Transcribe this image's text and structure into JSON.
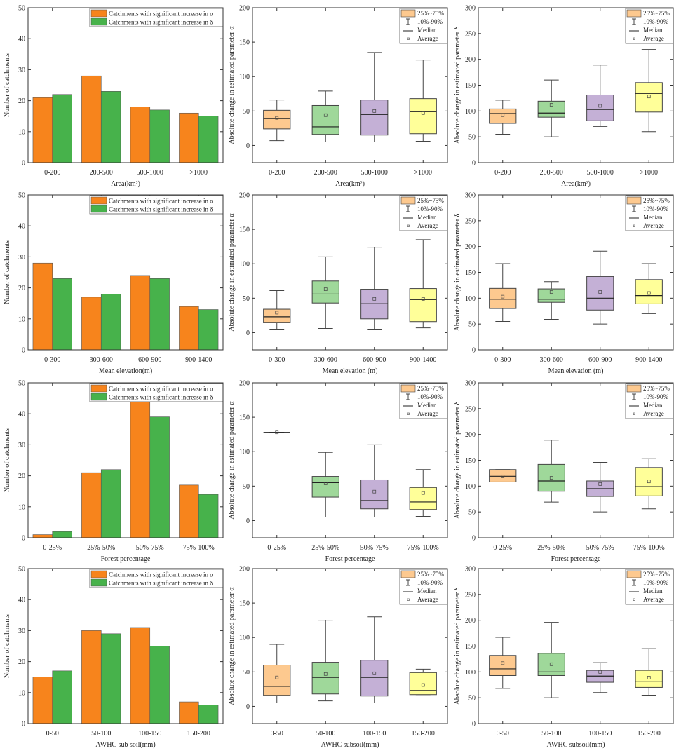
{
  "colors": {
    "bar_alpha": "#f7841c",
    "bar_delta": "#47b24b",
    "box_fills": [
      "#fdc98f",
      "#9fd89a",
      "#c4b0d6",
      "#ffff99"
    ],
    "axis": "#333333"
  },
  "chart_data": [
    {
      "type": "bar",
      "xlabel": "Area(km²)",
      "ylabel": "Number of catchments",
      "ylim": [
        0,
        50
      ],
      "yticks": [
        0,
        10,
        20,
        30,
        40,
        50
      ],
      "categories": [
        "0-200",
        "200-500",
        "500-1000",
        ">1000"
      ],
      "legend": [
        "Catchments with significant increase in α",
        "Catchments with significant increase in δ"
      ],
      "series": [
        {
          "name": "Catchments with significant increase in α",
          "values": [
            21,
            28,
            18,
            16
          ]
        },
        {
          "name": "Catchments with significant increase in δ",
          "values": [
            22,
            23,
            17,
            15
          ]
        }
      ]
    },
    {
      "type": "box",
      "xlabel": "Area(km²)",
      "ylabel": "Absolute change in estimated parameter α",
      "ylim": [
        -25,
        200
      ],
      "yticks": [
        0,
        50,
        100,
        150,
        200
      ],
      "categories": [
        "0-200",
        "200-500",
        "500-1000",
        ">1000"
      ],
      "legend": [
        "25%~75%",
        "10%-90%",
        "Median",
        "Average"
      ],
      "stat_order": [
        "p10",
        "q1",
        "median",
        "q3",
        "p90",
        "mean"
      ],
      "stats": [
        [
          7,
          24,
          39,
          51,
          66,
          40
        ],
        [
          5,
          16,
          27,
          58,
          79,
          44
        ],
        [
          5,
          15,
          45,
          66,
          135,
          50
        ],
        [
          6,
          17,
          49,
          68,
          124,
          47
        ]
      ]
    },
    {
      "type": "box",
      "xlabel": "Area(km²)",
      "ylabel": "Absolute change in estimated parameter δ",
      "ylim": [
        0,
        300
      ],
      "yticks": [
        0,
        50,
        100,
        150,
        200,
        250,
        300
      ],
      "categories": [
        "0-200",
        "200-500",
        "500-1000",
        ">1000"
      ],
      "legend": [
        "25%~75%",
        "10%-90%",
        "Median",
        "Average"
      ],
      "stat_order": [
        "p10",
        "q1",
        "median",
        "q3",
        "p90",
        "mean"
      ],
      "stats": [
        [
          55,
          76,
          95,
          104,
          121,
          92
        ],
        [
          50,
          88,
          96,
          119,
          160,
          112
        ],
        [
          70,
          81,
          103,
          131,
          189,
          110
        ],
        [
          60,
          98,
          134,
          155,
          219,
          128
        ]
      ]
    },
    {
      "type": "bar",
      "xlabel": "Mean elevation(m)",
      "ylabel": "Number of catchments",
      "ylim": [
        0,
        50
      ],
      "yticks": [
        0,
        10,
        20,
        30,
        40,
        50
      ],
      "categories": [
        "0-300",
        "300-600",
        "600-900",
        "900-1400"
      ],
      "legend": [
        "Catchments with significant increase in α",
        "Catchments with significant increase in δ"
      ],
      "series": [
        {
          "name": "Catchments with significant increase in α",
          "values": [
            28,
            17,
            24,
            14
          ]
        },
        {
          "name": "Catchments with significant increase in δ",
          "values": [
            23,
            18,
            23,
            13
          ]
        }
      ]
    },
    {
      "type": "box",
      "xlabel": "Mean elevation (m)",
      "ylabel": "Absolute change in estimated parameter α",
      "ylim": [
        -25,
        200
      ],
      "yticks": [
        0,
        50,
        100,
        150,
        200
      ],
      "categories": [
        "0-300",
        "300-600",
        "600-900",
        "900-1400"
      ],
      "legend": [
        "25%~75%",
        "10%-90%",
        "Median",
        "Average"
      ],
      "stat_order": [
        "p10",
        "q1",
        "median",
        "q3",
        "p90",
        "mean"
      ],
      "stats": [
        [
          5,
          15,
          23,
          34,
          61,
          29
        ],
        [
          6,
          43,
          56,
          75,
          110,
          63
        ],
        [
          5,
          20,
          42,
          63,
          124,
          49
        ],
        [
          7,
          16,
          48,
          64,
          135,
          49
        ]
      ]
    },
    {
      "type": "box",
      "xlabel": "Mean elevation (m)",
      "ylabel": "Absolute change in estimated parameter δ",
      "ylim": [
        0,
        300
      ],
      "yticks": [
        0,
        50,
        100,
        150,
        200,
        250,
        300
      ],
      "categories": [
        "0-300",
        "300-600",
        "600-900",
        "900-1400"
      ],
      "legend": [
        "25%~75%",
        "10%-90%",
        "Median",
        "Average"
      ],
      "stat_order": [
        "p10",
        "q1",
        "median",
        "q3",
        "p90",
        "mean"
      ],
      "stats": [
        [
          55,
          80,
          98,
          119,
          167,
          103
        ],
        [
          59,
          92,
          98,
          118,
          132,
          112
        ],
        [
          50,
          77,
          100,
          142,
          191,
          112
        ],
        [
          70,
          89,
          105,
          136,
          167,
          110
        ]
      ]
    },
    {
      "type": "bar",
      "xlabel": "Forest percentage",
      "ylabel": "Number of catchments",
      "ylim": [
        0,
        50
      ],
      "yticks": [
        0,
        10,
        20,
        30,
        40,
        50
      ],
      "categories": [
        "0-25%",
        "25%-50%",
        "50%-75%",
        "75%-100%"
      ],
      "legend": [
        "Catchments with significant increase in α",
        "Catchments with significant increase in δ"
      ],
      "series": [
        {
          "name": "Catchments with significant increase in α",
          "values": [
            1,
            21,
            44,
            17
          ]
        },
        {
          "name": "Catchments with significant increase in δ",
          "values": [
            2,
            22,
            39,
            14
          ]
        }
      ]
    },
    {
      "type": "box",
      "xlabel": "Forest  percentage",
      "ylabel": "Absolute change in estimated parameter α",
      "ylim": [
        -25,
        200
      ],
      "yticks": [
        0,
        50,
        100,
        150,
        200
      ],
      "categories": [
        "0-25%",
        "25%-50%",
        "50%-75%",
        "75%-100%"
      ],
      "legend": [
        "25%~75%",
        "10%-90%",
        "Median",
        "Average"
      ],
      "stat_order": [
        "p10",
        "q1",
        "median",
        "q3",
        "p90",
        "mean"
      ],
      "stats": [
        [
          128,
          128,
          128,
          128,
          128,
          128
        ],
        [
          5,
          34,
          55,
          64,
          99,
          54
        ],
        [
          5,
          17,
          29,
          59,
          110,
          42
        ],
        [
          6,
          16,
          27,
          48,
          74,
          40
        ]
      ]
    },
    {
      "type": "box",
      "xlabel": "Forest  percentage",
      "ylabel": "Absolute change in estimated parameter δ",
      "ylim": [
        0,
        300
      ],
      "yticks": [
        0,
        50,
        100,
        150,
        200,
        250,
        300
      ],
      "categories": [
        "0-25%",
        "25%-50%",
        "50%-75%",
        "75%-100%"
      ],
      "legend": [
        "25%~75%",
        "10%-90%",
        "Median",
        "Average"
      ],
      "stat_order": [
        "p10",
        "q1",
        "median",
        "q3",
        "p90",
        "mean"
      ],
      "stats": [
        [
          108,
          108,
          119,
          132,
          132,
          119
        ],
        [
          69,
          90,
          110,
          142,
          189,
          116
        ],
        [
          50,
          80,
          95,
          110,
          146,
          104
        ],
        [
          56,
          81,
          99,
          136,
          153,
          109
        ]
      ]
    },
    {
      "type": "bar",
      "xlabel": "AWHC sub soil(mm)",
      "ylabel": "Number of catchments",
      "ylim": [
        0,
        50
      ],
      "yticks": [
        0,
        10,
        20,
        30,
        40,
        50
      ],
      "categories": [
        "0-50",
        "50-100",
        "100-150",
        "150-200"
      ],
      "legend": [
        "Catchments with significant increase in α",
        "Catchments with significant increase in δ"
      ],
      "series": [
        {
          "name": "Catchments with significant increase in α",
          "values": [
            15,
            30,
            31,
            7
          ]
        },
        {
          "name": "Catchments with significant increase in δ",
          "values": [
            17,
            29,
            25,
            6
          ]
        }
      ]
    },
    {
      "type": "box",
      "xlabel": "AWHC subsoil(mm)",
      "ylabel": "Absolute change in estimated parameter α",
      "ylim": [
        -25,
        200
      ],
      "yticks": [
        0,
        50,
        100,
        150,
        200
      ],
      "categories": [
        "0-50",
        "50-100",
        "100-150",
        "150-200"
      ],
      "legend": [
        "25%~75%",
        "10%-90%",
        "Median",
        "Average"
      ],
      "stat_order": [
        "p10",
        "q1",
        "median",
        "q3",
        "p90",
        "mean"
      ],
      "stats": [
        [
          5,
          16,
          29,
          60,
          90,
          42
        ],
        [
          8,
          18,
          42,
          64,
          125,
          47
        ],
        [
          5,
          15,
          42,
          67,
          130,
          48
        ],
        [
          17,
          17,
          23,
          49,
          54,
          31
        ]
      ]
    },
    {
      "type": "box",
      "xlabel": "AWHC subsoil(mm)",
      "ylabel": "Absolute change in estimated parameter δ",
      "ylim": [
        0,
        300
      ],
      "yticks": [
        0,
        50,
        100,
        150,
        200,
        250,
        300
      ],
      "categories": [
        "0-50",
        "50-100",
        "100-150",
        "150-200"
      ],
      "legend": [
        "25%~75%",
        "10%-90%",
        "Median",
        "Average"
      ],
      "stat_order": [
        "p10",
        "q1",
        "median",
        "q3",
        "p90",
        "mean"
      ],
      "stats": [
        [
          68,
          93,
          106,
          132,
          167,
          117
        ],
        [
          50,
          93,
          100,
          136,
          196,
          115
        ],
        [
          60,
          80,
          92,
          103,
          118,
          100
        ],
        [
          55,
          70,
          82,
          103,
          145,
          89
        ]
      ]
    }
  ]
}
